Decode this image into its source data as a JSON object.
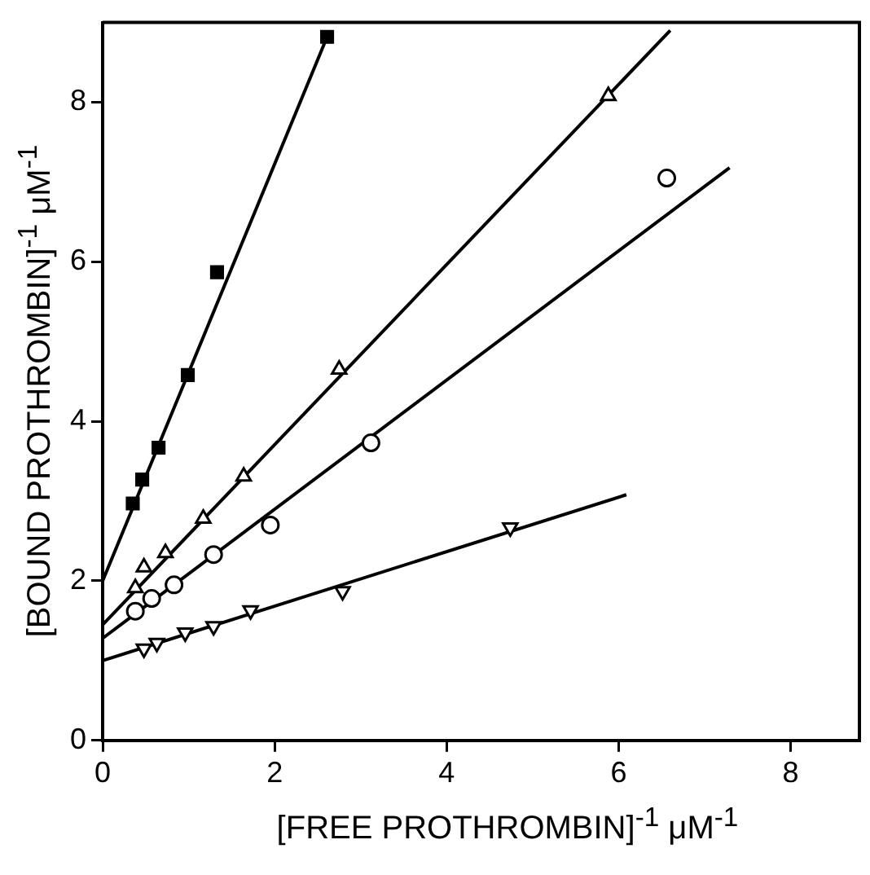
{
  "chart_data": {
    "type": "scatter",
    "xlabel": "[FREE PROTHROMBIN]$^{-1}$  μM$^{-1}$",
    "ylabel": "[BOUND PROTHROMBIN]$^{-1}$  μM$^{-1}$",
    "xlim": [
      0,
      8.8
    ],
    "ylim": [
      0,
      9
    ],
    "xticks": [
      0,
      2,
      4,
      6,
      8
    ],
    "yticks": [
      0,
      2,
      4,
      6,
      8
    ],
    "grid": false,
    "legend": false,
    "series": [
      {
        "type": "scatter",
        "marker": "square",
        "color": "#000000",
        "x": [
          0.35,
          0.46,
          0.65,
          0.99,
          1.33,
          2.61
        ],
        "values": [
          2.97,
          3.27,
          3.67,
          4.58,
          5.87,
          8.82
        ]
      },
      {
        "type": "line",
        "marker": "none",
        "color": "#000000",
        "x": [
          0,
          2.61
        ],
        "values": [
          2.0,
          8.82
        ]
      },
      {
        "type": "scatter",
        "marker": "triangle",
        "color": "#000000",
        "x": [
          0.38,
          0.48,
          0.73,
          1.17,
          1.64,
          2.75,
          5.88
        ],
        "values": [
          1.91,
          2.17,
          2.35,
          2.78,
          3.31,
          4.65,
          8.08
        ]
      },
      {
        "type": "line",
        "marker": "none",
        "color": "#000000",
        "x": [
          0,
          6.6
        ],
        "values": [
          1.45,
          8.9
        ]
      },
      {
        "type": "scatter",
        "marker": "circle",
        "color": "#000000",
        "x": [
          0.38,
          0.57,
          0.83,
          1.29,
          1.95,
          3.12,
          6.56
        ],
        "values": [
          1.62,
          1.78,
          1.95,
          2.33,
          2.7,
          3.73,
          7.05
        ]
      },
      {
        "type": "line",
        "marker": "none",
        "color": "#000000",
        "x": [
          0,
          7.29
        ],
        "values": [
          1.28,
          7.18
        ]
      },
      {
        "type": "scatter",
        "marker": "triangle_down",
        "color": "#000000",
        "x": [
          0.48,
          0.63,
          0.96,
          1.29,
          1.72,
          2.79,
          4.74
        ],
        "values": [
          1.15,
          1.22,
          1.35,
          1.43,
          1.63,
          1.87,
          2.67
        ]
      },
      {
        "type": "line",
        "marker": "none",
        "color": "#000000",
        "x": [
          0,
          6.09
        ],
        "values": [
          1.0,
          3.08
        ]
      }
    ]
  }
}
